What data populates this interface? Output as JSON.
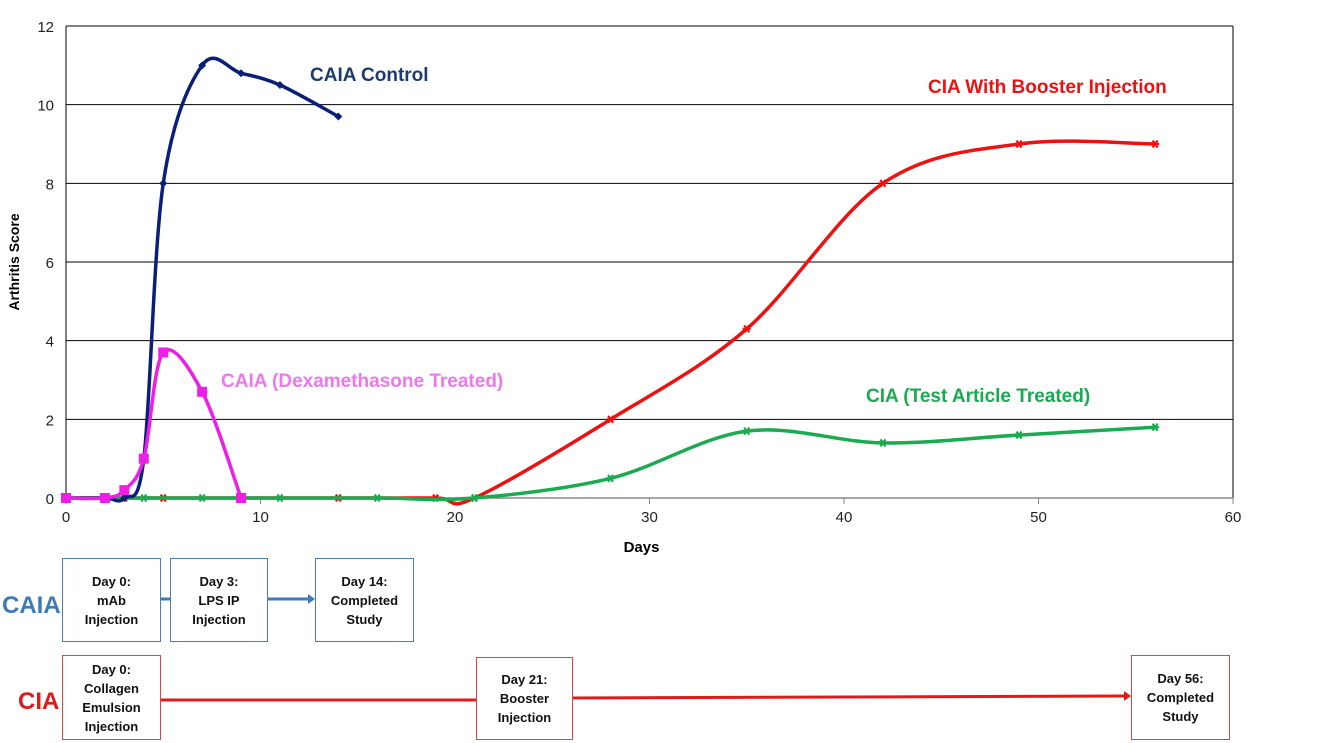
{
  "chart_data": {
    "type": "line",
    "xlabel": "Days",
    "ylabel": "Arthritis  Score",
    "xlim": [
      0,
      60
    ],
    "ylim": [
      0,
      12
    ],
    "xticks": [
      0,
      10,
      20,
      30,
      40,
      50,
      60
    ],
    "yticks": [
      0,
      2,
      4,
      6,
      8,
      10,
      12
    ],
    "grid": "horizontal",
    "series": [
      {
        "name": "CAIA Control",
        "color": "#0a1f7a",
        "label_color": "#1f3a6e",
        "marker": "diamond",
        "x": [
          0,
          2,
          3,
          4,
          5,
          7,
          9,
          11,
          14
        ],
        "y": [
          0,
          0,
          0,
          1,
          8,
          11,
          10.8,
          10.5,
          9.7
        ]
      },
      {
        "name": "CAIA (Dexamethasone Treated)",
        "color": "#ee1ee6",
        "label_color": "#ee77ee",
        "marker": "square",
        "x": [
          0,
          2,
          3,
          4,
          5,
          7,
          9
        ],
        "y": [
          0,
          0,
          0.2,
          1,
          3.7,
          2.7,
          0
        ]
      },
      {
        "name": "CIA With Booster Injection",
        "color": "#ee1111",
        "label_color": "#ee1111",
        "marker": "star",
        "x": [
          0,
          3,
          5,
          14,
          19,
          21,
          28,
          35,
          42,
          49,
          56
        ],
        "y": [
          0,
          0,
          0,
          0,
          0,
          0,
          2,
          4.3,
          8,
          9,
          9
        ]
      },
      {
        "name": "CIA (Test Article  Treated)",
        "color": "#1aaa50",
        "label_color": "#1aaa50",
        "marker": "star",
        "x": [
          2,
          4,
          7,
          11,
          16,
          21,
          28,
          35,
          42,
          49,
          56
        ],
        "y": [
          0,
          0,
          0,
          0,
          0,
          0,
          0.5,
          1.7,
          1.4,
          1.6,
          1.8
        ]
      }
    ]
  },
  "timeline": {
    "caia": {
      "label": "CAIA",
      "color": "#3d7ab8",
      "boxes": [
        "Day 0:\nmAb\nInjection",
        "Day 3:\nLPS IP\nInjection",
        "Day 14:\nCompleted\nStudy"
      ]
    },
    "cia": {
      "label": "CIA",
      "color": "#e01a1a",
      "boxes": [
        "Day 0:\nCollagen\nEmulsion\nInjection",
        "Day 21:\nBooster\nInjection",
        "Day 56:\nCompleted\nStudy"
      ]
    }
  }
}
